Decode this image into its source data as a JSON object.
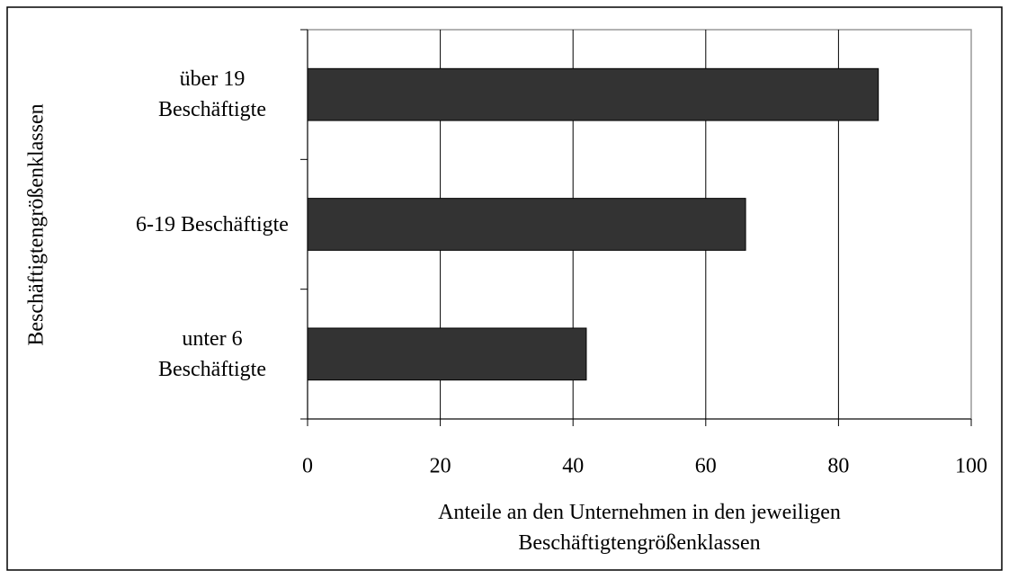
{
  "chart_data": {
    "type": "bar",
    "orientation": "horizontal",
    "categories": [
      "über 19 Beschäftigte",
      "6-19 Beschäftigte",
      "unter 6 Beschäftigte"
    ],
    "values": [
      86,
      66,
      42
    ],
    "color": "#333333",
    "xlim": [
      0,
      100
    ],
    "xticks": [
      0,
      20,
      40,
      60,
      80,
      100
    ],
    "grid": true,
    "x_label": "Anteile an den Unternehmen in den jeweiligen Beschäftigtengrößenklassen",
    "y_label": "Beschäftigtengrößenklassen"
  }
}
